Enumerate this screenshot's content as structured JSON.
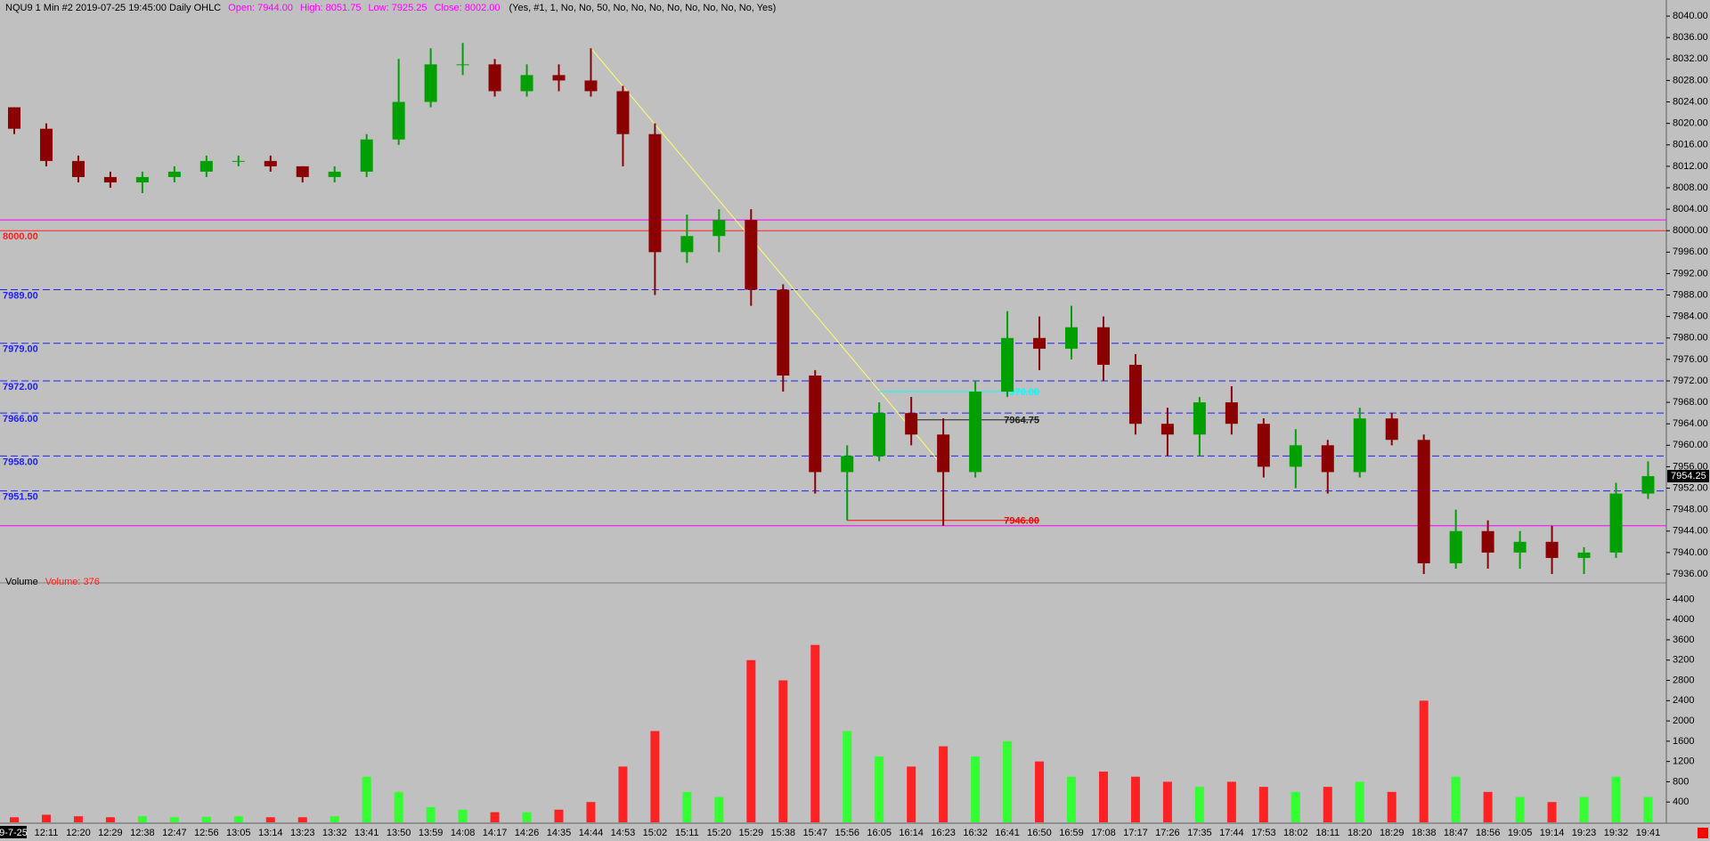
{
  "chart_data": [
    {
      "type": "candlestick",
      "title": "NQU9  1 Min  #2 2019-07-25 19:45:00 Daily OHLC",
      "stats": [
        "Open: 7944.00",
        "High: 8051.75",
        "Low: 7925.25",
        "Close: 8002.00"
      ],
      "settings": "(Yes, #1, 1, No, No, 50, No, No, No, No, No, No, No, No, Yes)",
      "categories": [
        "9-7-25",
        "12:11",
        "12:20",
        "12:29",
        "12:38",
        "12:47",
        "12:56",
        "13:05",
        "13:14",
        "13:23",
        "13:32",
        "13:41",
        "13:50",
        "13:59",
        "14:08",
        "14:17",
        "14:26",
        "14:35",
        "14:44",
        "14:53",
        "15:02",
        "15:11",
        "15:20",
        "15:29",
        "15:38",
        "15:47",
        "15:56",
        "16:05",
        "16:14",
        "16:23",
        "16:32",
        "16:41",
        "16:50",
        "16:59",
        "17:08",
        "17:17",
        "17:26",
        "17:35",
        "17:44",
        "17:53",
        "18:02",
        "18:11",
        "18:20",
        "18:29",
        "18:38",
        "18:47",
        "18:56",
        "19:05",
        "19:14",
        "19:23",
        "19:32",
        "19:41"
      ],
      "open": [
        8023,
        8019,
        8013,
        8010,
        8009,
        8010,
        8011,
        8013,
        8013,
        8012,
        8010,
        8011,
        8017,
        8024,
        8031,
        8031,
        8026,
        8029,
        8028,
        8026,
        8018,
        7996,
        7999,
        8002,
        7989,
        7973,
        7955,
        7958,
        7966,
        7962,
        7955,
        7970,
        7980,
        7978,
        7982,
        7975,
        7964,
        7962,
        7968,
        7964,
        7956,
        7960,
        7955,
        7965,
        7961,
        7938,
        7944,
        7940,
        7942,
        7939,
        7940,
        7951
      ],
      "high": [
        8023,
        8020,
        8014,
        8011,
        8011,
        8012,
        8014,
        8014,
        8014,
        8012,
        8012,
        8018,
        8032,
        8034,
        8035,
        8032,
        8031,
        8031,
        8034,
        8027,
        8020,
        8003,
        8004,
        8004,
        7990,
        7974,
        7960,
        7968,
        7969,
        7965,
        7972,
        7985,
        7984,
        7986,
        7984,
        7977,
        7967,
        7969,
        7971,
        7965,
        7963,
        7961,
        7967,
        7966,
        7962,
        7948,
        7946,
        7944,
        7945,
        7941,
        7953,
        7957
      ],
      "low": [
        8018,
        8012,
        8009,
        8008,
        8007,
        8009,
        8010,
        8012,
        8011,
        8009,
        8009,
        8010,
        8016,
        8023,
        8029,
        8025,
        8025,
        8026,
        8025,
        8012,
        7988,
        7994,
        7996,
        7986,
        7970,
        7951,
        7946,
        7957,
        7960,
        7945,
        7954,
        7969,
        7974,
        7976,
        7972,
        7962,
        7958,
        7958,
        7962,
        7954,
        7952,
        7951,
        7954,
        7960,
        7936,
        7937,
        7937,
        7937,
        7936,
        7936,
        7939,
        7950
      ],
      "close": [
        8019,
        8013,
        8010,
        8009,
        8010,
        8011,
        8013,
        8013,
        8012,
        8010,
        8011,
        8017,
        8024,
        8031,
        8031,
        8026,
        8029,
        8028,
        8026,
        8018,
        7996,
        7999,
        8002,
        7989,
        7973,
        7955,
        7958,
        7966,
        7962,
        7955,
        7970,
        7980,
        7978,
        7982,
        7975,
        7964,
        7962,
        7968,
        7964,
        7956,
        7960,
        7955,
        7965,
        7961,
        7938,
        7944,
        7940,
        7942,
        7939,
        7940,
        7951,
        7954.25
      ],
      "last_label": "7954.25",
      "up_color": "#00a000",
      "down_color": "#8b0000",
      "ylim": [
        7936,
        8043
      ],
      "yticks": [
        {
          "value": 7936,
          "label": "7936.00"
        },
        {
          "value": 7940,
          "label": "7940.00"
        },
        {
          "value": 7944,
          "label": "7944.00"
        },
        {
          "value": 7948,
          "label": "7948.00"
        },
        {
          "value": 7952,
          "label": "7952.00"
        },
        {
          "value": 7956,
          "label": "7956.00"
        },
        {
          "value": 7960,
          "label": "7960.00"
        },
        {
          "value": 7964,
          "label": "7964.00"
        },
        {
          "value": 7968,
          "label": "7968.00"
        },
        {
          "value": 7972,
          "label": "7972.00"
        },
        {
          "value": 7976,
          "label": "7976.00"
        },
        {
          "value": 7980,
          "label": "7980.00"
        },
        {
          "value": 7984,
          "label": "7984.00"
        },
        {
          "value": 7988,
          "label": "7988.00"
        },
        {
          "value": 7992,
          "label": "7992.00"
        },
        {
          "value": 7996,
          "label": "7996.00"
        },
        {
          "value": 8000,
          "label": "8000.00"
        },
        {
          "value": 8004,
          "label": "8004.00"
        },
        {
          "value": 8008,
          "label": "8008.00"
        },
        {
          "value": 8012,
          "label": "8012.00"
        },
        {
          "value": 8016,
          "label": "8016.00"
        },
        {
          "value": 8020,
          "label": "8020.00"
        },
        {
          "value": 8024,
          "label": "8024.00"
        },
        {
          "value": 8028,
          "label": "8028.00"
        },
        {
          "value": 8032,
          "label": "8032.00"
        },
        {
          "value": 8036,
          "label": "8036.00"
        },
        {
          "value": 8040,
          "label": "8040.00"
        }
      ],
      "lines": [
        {
          "value": 8002,
          "color": "#ff00ff",
          "style": "solid"
        },
        {
          "value": 8000,
          "label": "8000.00",
          "color": "#ff2020",
          "style": "solid"
        },
        {
          "value": 7989,
          "label": "7989.00",
          "color": "#2020ff",
          "style": "dashed"
        },
        {
          "value": 7979,
          "label": "7979.00",
          "color": "#2020ff",
          "style": "dashed"
        },
        {
          "value": 7972,
          "label": "7972.00",
          "color": "#2020ff",
          "style": "dashed"
        },
        {
          "value": 7966,
          "label": "7966.00",
          "color": "#2020ff",
          "style": "dashed"
        },
        {
          "value": 7958,
          "label": "7958.00",
          "color": "#2020ff",
          "style": "dashed"
        },
        {
          "value": 7951.5,
          "label": "7951.50",
          "color": "#2020ff",
          "style": "dashed"
        },
        {
          "value": 7945,
          "color": "#ff00ff",
          "style": "solid"
        }
      ],
      "rays": [
        {
          "value": 7970,
          "label": "7970.00",
          "color": "#00ffff",
          "start": "16:05",
          "end": "16:50"
        },
        {
          "value": 7964.75,
          "label": "7964.75",
          "color": "#202020",
          "start": "16:14",
          "end": "16:50"
        },
        {
          "value": 7946,
          "label": "7946.00",
          "color": "#ff0000",
          "start": "15:56",
          "end": "16:50"
        }
      ],
      "trendline": {
        "color": "#ffff66",
        "from": {
          "x": "14:44",
          "y": 8034
        },
        "to": {
          "x": "16:23",
          "y": 7956
        }
      }
    },
    {
      "type": "bar",
      "title": "Volume",
      "subtitle": "Volume: 376",
      "values": [
        100,
        150,
        120,
        100,
        120,
        100,
        110,
        120,
        100,
        100,
        120,
        900,
        600,
        300,
        250,
        200,
        200,
        250,
        400,
        1100,
        1800,
        600,
        500,
        3200,
        2800,
        3500,
        1800,
        1300,
        1100,
        1500,
        1300,
        1600,
        1200,
        900,
        1000,
        900,
        800,
        700,
        800,
        700,
        600,
        700,
        800,
        600,
        2400,
        900,
        600,
        500,
        400,
        500,
        900,
        500
      ],
      "up_color": "#33ff33",
      "down_color": "#ff2222",
      "ylim": [
        0,
        4600
      ],
      "yticks": [
        400,
        800,
        1200,
        1600,
        2000,
        2400,
        2800,
        3200,
        3600,
        4000,
        4400
      ]
    }
  ]
}
